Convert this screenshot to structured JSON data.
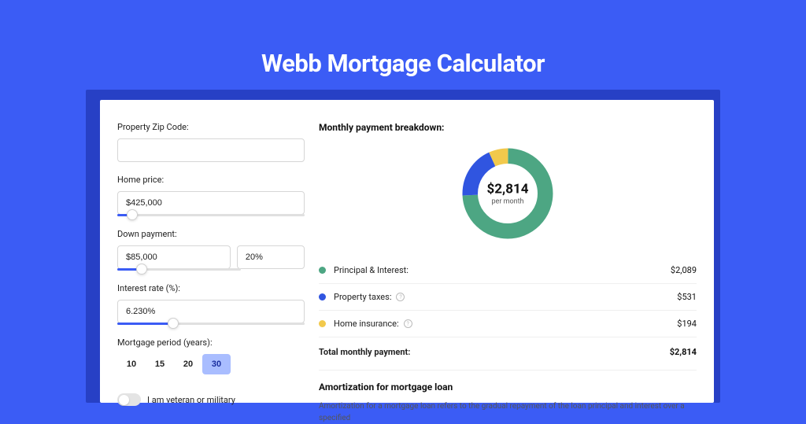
{
  "page": {
    "title": "Webb Mortgage Calculator",
    "background_color": "#3b5cf5",
    "shadow_color": "#2740c5",
    "panel_color": "#ffffff"
  },
  "form": {
    "zip": {
      "label": "Property Zip Code:",
      "value": ""
    },
    "home_price": {
      "label": "Home price:",
      "value": "$425,000",
      "slider_pct": 8
    },
    "down_payment": {
      "label": "Down payment:",
      "value": "$85,000",
      "pct_value": "20%",
      "slider_pct": 20
    },
    "interest_rate": {
      "label": "Interest rate (%):",
      "value": "6.230%",
      "slider_pct": 30
    },
    "period": {
      "label": "Mortgage period (years):",
      "options": [
        "10",
        "15",
        "20",
        "30"
      ],
      "selected": "30"
    },
    "veteran": {
      "label": "I am veteran or military",
      "on": false
    }
  },
  "breakdown": {
    "title": "Monthly payment breakdown:",
    "donut": {
      "amount": "$2,814",
      "sub": "per month",
      "segments": [
        {
          "label": "Principal & Interest:",
          "value": "$2,089",
          "color": "#4da683",
          "pct": 74.2
        },
        {
          "label": "Property taxes:",
          "value": "$531",
          "color": "#3055e0",
          "pct": 18.9,
          "info": true
        },
        {
          "label": "Home insurance:",
          "value": "$194",
          "color": "#f2c94c",
          "pct": 6.9,
          "info": true
        }
      ]
    },
    "total": {
      "label": "Total monthly payment:",
      "value": "$2,814"
    }
  },
  "amortization": {
    "title": "Amortization for mortgage loan",
    "text": "Amortization for a mortgage loan refers to the gradual repayment of the loan principal and interest over a specified"
  }
}
